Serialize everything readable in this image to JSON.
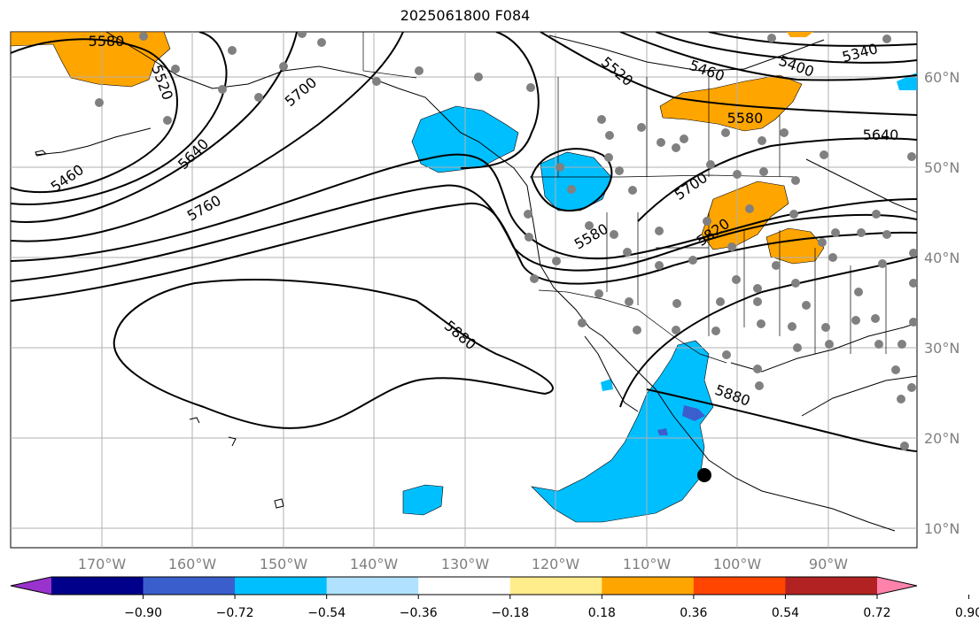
{
  "title": "2025061800 F084",
  "lon_labels": [
    "170°W",
    "160°W",
    "150°W",
    "140°W",
    "130°W",
    "120°W",
    "110°W",
    "100°W",
    "90°W"
  ],
  "lat_labels": [
    "60°N",
    "50°N",
    "40°N",
    "30°N",
    "20°N",
    "10°N"
  ],
  "contour_labels": [
    "5580",
    "5520",
    "5700",
    "5640",
    "5460",
    "5760",
    "5580",
    "5880",
    "5520",
    "5460",
    "5400",
    "5340",
    "5580",
    "5640",
    "5700",
    "5820",
    "5880"
  ],
  "colorbar": {
    "ticks": [
      "−0.90",
      "−0.72",
      "−0.54",
      "−0.36",
      "−0.18",
      "0.18",
      "0.36",
      "0.54",
      "0.72",
      "0.90"
    ],
    "colors": [
      "#9a32cd",
      "#00008b",
      "#3a5fcd",
      "#00bfff",
      "#b0e2ff",
      "#ffffff",
      "#ffec8b",
      "#ffa500",
      "#ff4500",
      "#b22222",
      "#ff82ab"
    ]
  },
  "colors": {
    "negative_fill": "#00bfff",
    "positive_fill": "#ffa500",
    "station_marker": "#808080",
    "storm_marker": "#000000"
  }
}
